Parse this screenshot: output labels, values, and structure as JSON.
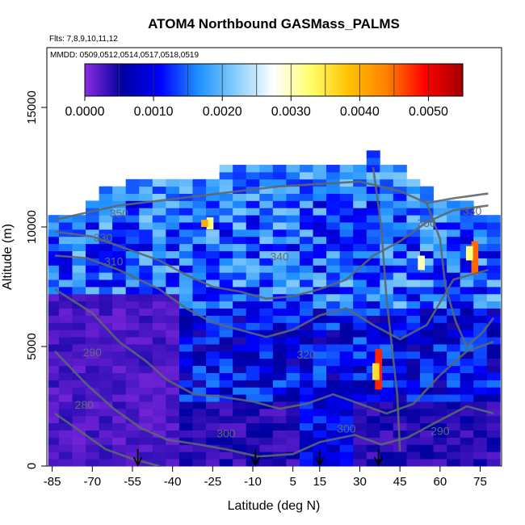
{
  "chart_data": {
    "type": "heatmap",
    "title": "ATOM4 Northbound GASMass_PALMS",
    "flights_label": "Flts: 7,8,9,10,11,12",
    "dates_label": "MMDD: 0509,0512,0514,0517,0518,0519",
    "xlabel": "Latitude (deg N)",
    "ylabel": "Altitude (m)",
    "xlim": [
      -87,
      83
    ],
    "ylim": [
      0,
      17500
    ],
    "x_ticks": [
      -85,
      -70,
      -55,
      -40,
      -25,
      -10,
      5,
      15,
      30,
      45,
      60,
      75
    ],
    "y_ticks": [
      0,
      5000,
      10000,
      15000
    ],
    "colorbar": {
      "min": 0.0,
      "max": 0.0055,
      "ticks": [
        0.0,
        0.001,
        0.002,
        0.003,
        0.004,
        0.005
      ],
      "tick_labels": [
        "0.0000",
        "0.0010",
        "0.0020",
        "0.0030",
        "0.0040",
        "0.0050"
      ],
      "colors": [
        "#8a2be2",
        "#0000a0",
        "#0000ff",
        "#1e90ff",
        "#87cefa",
        "#ffffff",
        "#ffff66",
        "#ffc000",
        "#ff7f00",
        "#ff0000",
        "#a00000"
      ]
    },
    "heatmap_columns": [
      {
        "lat": -84,
        "alt_top": 10500
      },
      {
        "lat": -80,
        "alt_top": 10500
      },
      {
        "lat": -75,
        "alt_top": 10500
      },
      {
        "lat": -70,
        "alt_top": 11000
      },
      {
        "lat": -65,
        "alt_top": 11500
      },
      {
        "lat": -60,
        "alt_top": 11500
      },
      {
        "lat": -55,
        "alt_top": 12000
      },
      {
        "lat": -50,
        "alt_top": 12000
      },
      {
        "lat": -45,
        "alt_top": 12000
      },
      {
        "lat": -40,
        "alt_top": 12000
      },
      {
        "lat": -35,
        "alt_top": 12000
      },
      {
        "lat": -30,
        "alt_top": 12000
      },
      {
        "lat": -25,
        "alt_top": 12000
      },
      {
        "lat": -20,
        "alt_top": 12500
      },
      {
        "lat": -15,
        "alt_top": 12500
      },
      {
        "lat": -10,
        "alt_top": 12500
      },
      {
        "lat": -5,
        "alt_top": 12500
      },
      {
        "lat": 0,
        "alt_top": 12500
      },
      {
        "lat": 5,
        "alt_top": 12500
      },
      {
        "lat": 10,
        "alt_top": 12500
      },
      {
        "lat": 15,
        "alt_top": 12500
      },
      {
        "lat": 20,
        "alt_top": 12500
      },
      {
        "lat": 25,
        "alt_top": 12500
      },
      {
        "lat": 30,
        "alt_top": 12500
      },
      {
        "lat": 35,
        "alt_top": 13000
      },
      {
        "lat": 40,
        "alt_top": 12500
      },
      {
        "lat": 45,
        "alt_top": 12500
      },
      {
        "lat": 50,
        "alt_top": 12000
      },
      {
        "lat": 55,
        "alt_top": 11500
      },
      {
        "lat": 60,
        "alt_top": 11000
      },
      {
        "lat": 65,
        "alt_top": 11000
      },
      {
        "lat": 70,
        "alt_top": 11000
      },
      {
        "lat": 75,
        "alt_top": 10500
      },
      {
        "lat": 80,
        "alt_top": 10500
      }
    ],
    "hotspots": [
      {
        "lat": 37,
        "alt_min": 3200,
        "alt_max": 4900,
        "value": 0.0048
      },
      {
        "lat": 36,
        "alt_min": 3600,
        "alt_max": 4300,
        "value": 0.0036
      },
      {
        "lat": 73,
        "alt_min": 8000,
        "alt_max": 9400,
        "value": 0.0045
      },
      {
        "lat": 71,
        "alt_min": 8600,
        "alt_max": 9200,
        "value": 0.0032
      },
      {
        "lat": -26,
        "alt_min": 9900,
        "alt_max": 10400,
        "value": 0.0032
      },
      {
        "lat": -28,
        "alt_min": 10000,
        "alt_max": 10300,
        "value": 0.004
      },
      {
        "lat": 53,
        "alt_min": 8200,
        "alt_max": 8800,
        "value": 0.003
      }
    ],
    "contour_labels": [
      {
        "lat": -60,
        "alt": 10400,
        "text": "350"
      },
      {
        "lat": -66,
        "alt": 9400,
        "text": "330"
      },
      {
        "lat": -62,
        "alt": 8400,
        "text": "310"
      },
      {
        "lat": 0,
        "alt": 8600,
        "text": "340"
      },
      {
        "lat": 10,
        "alt": 4500,
        "text": "320"
      },
      {
        "lat": -70,
        "alt": 4600,
        "text": "290"
      },
      {
        "lat": -73,
        "alt": 2400,
        "text": "280"
      },
      {
        "lat": -20,
        "alt": 1200,
        "text": "300"
      },
      {
        "lat": 25,
        "alt": 1400,
        "text": "300"
      },
      {
        "lat": 60,
        "alt": 1300,
        "text": "290"
      },
      {
        "lat": 55,
        "alt": 10000,
        "text": "350"
      },
      {
        "lat": 72,
        "alt": 10500,
        "text": "330"
      }
    ],
    "arrows_lat": [
      -53,
      -9,
      15,
      37
    ]
  }
}
